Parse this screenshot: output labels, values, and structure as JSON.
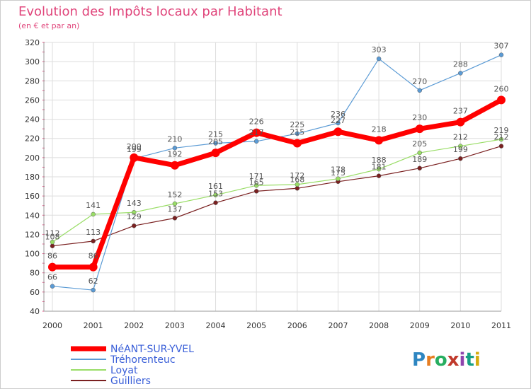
{
  "chart_data": {
    "type": "line",
    "title": "Evolution des Impôts locaux par Habitant",
    "subtitle": "(en € et par an)",
    "xlabel": "",
    "ylabel": "",
    "categories": [
      "2000",
      "2001",
      "2002",
      "2003",
      "2004",
      "2005",
      "2006",
      "2007",
      "2008",
      "2009",
      "2010",
      "2011"
    ],
    "ylim": [
      40,
      320
    ],
    "yticks": [
      40,
      60,
      80,
      100,
      120,
      140,
      160,
      180,
      200,
      220,
      240,
      260,
      280,
      300,
      320
    ],
    "grid": true,
    "legend_position": "bottom-left",
    "series": [
      {
        "name": "NéANT-SUR-YVEL",
        "color": "#ff0000",
        "values": [
          86,
          86,
          200,
          192,
          205,
          226,
          215,
          227,
          218,
          230,
          237,
          260
        ]
      },
      {
        "name": "Tréhorenteuc",
        "color": "#5b9bd5",
        "values": [
          66,
          62,
          199,
          210,
          215,
          217,
          225,
          236,
          303,
          270,
          288,
          307
        ]
      },
      {
        "name": "Loyat",
        "color": "#99dd66",
        "values": [
          112,
          141,
          143,
          152,
          161,
          171,
          172,
          178,
          188,
          205,
          212,
          219
        ]
      },
      {
        "name": "Guilliers",
        "color": "#7a2020",
        "values": [
          108,
          113,
          129,
          137,
          153,
          165,
          168,
          175,
          181,
          189,
          199,
          212
        ]
      }
    ]
  },
  "logo": {
    "text": "Proxiti"
  }
}
